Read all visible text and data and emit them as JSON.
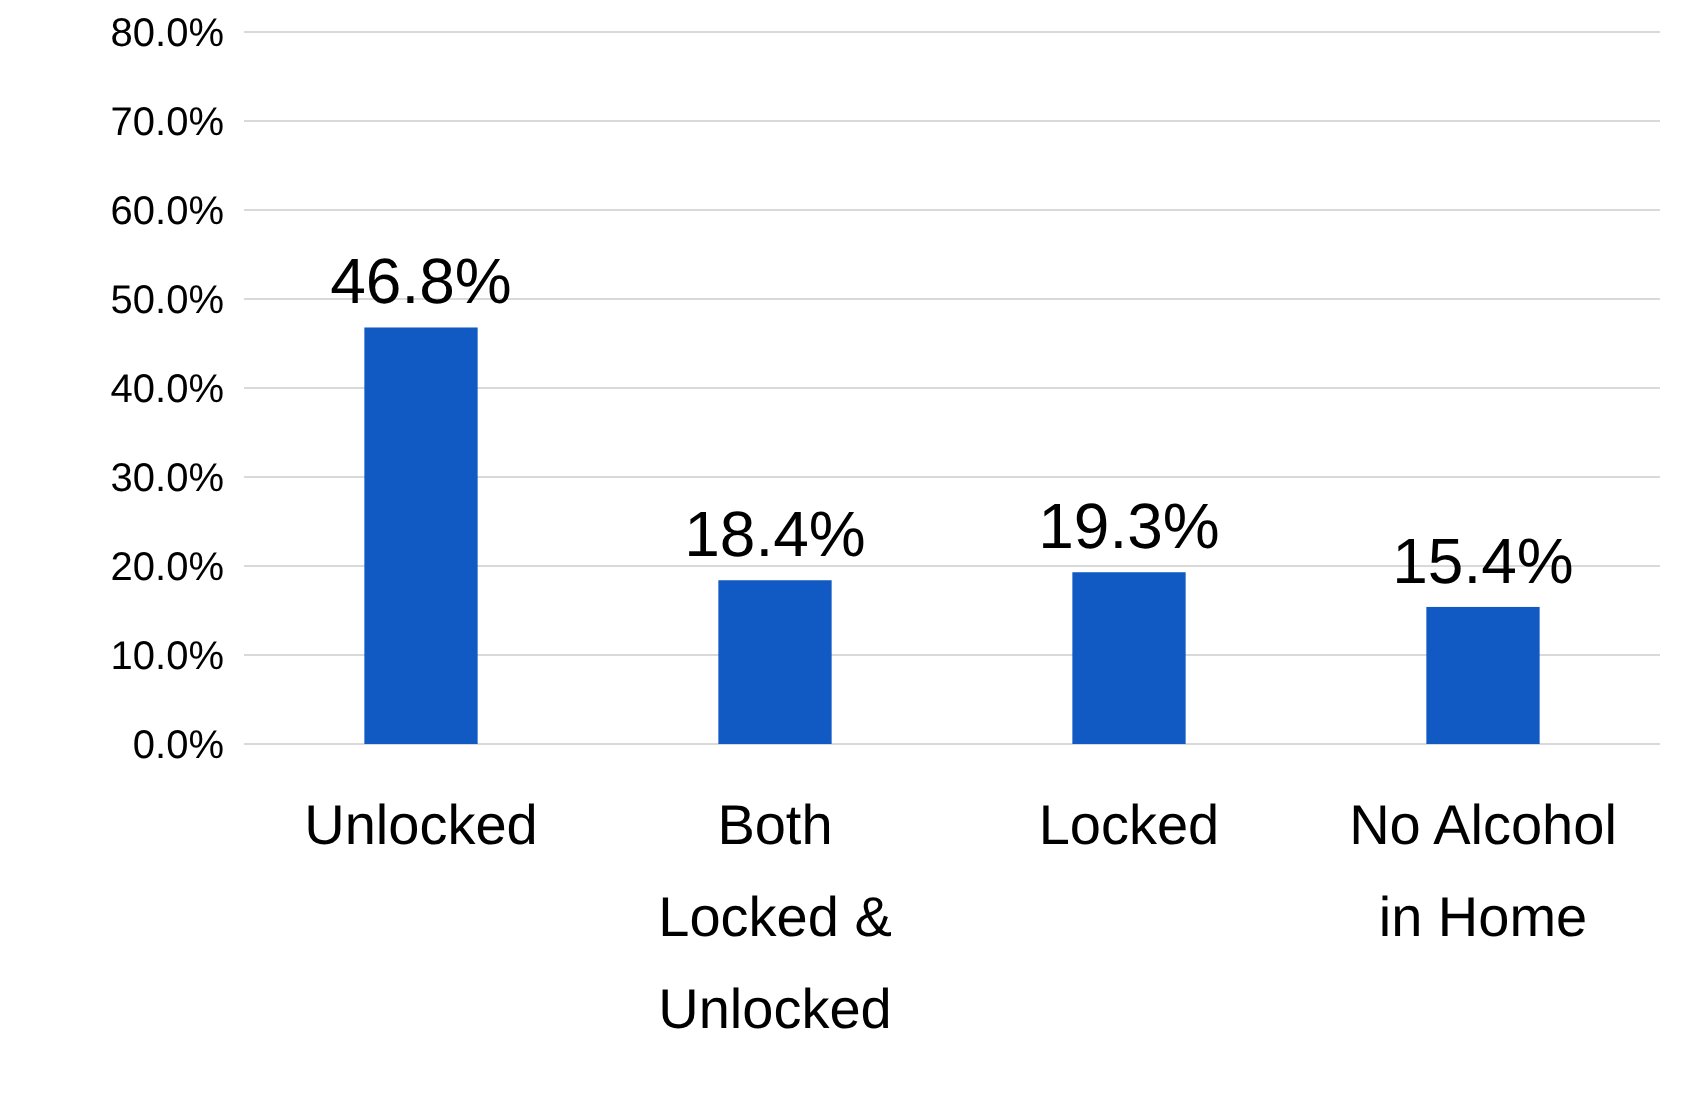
{
  "chart_data": {
    "type": "bar",
    "categories": [
      "Unlocked",
      "Both Locked & Unlocked",
      "Locked",
      "No Alcohol in Home"
    ],
    "values": [
      46.8,
      18.4,
      19.3,
      15.4
    ],
    "color": "#115ac4",
    "ylim": [
      0,
      80
    ],
    "yticks": [
      {
        "value": 0,
        "label": "0.0%"
      },
      {
        "value": 10,
        "label": "10.0%"
      },
      {
        "value": 20,
        "label": "20.0%"
      },
      {
        "value": 30,
        "label": "30.0%"
      },
      {
        "value": 40,
        "label": "40.0%"
      },
      {
        "value": 50,
        "label": "50.0%"
      },
      {
        "value": 60,
        "label": "60.0%"
      },
      {
        "value": 70,
        "label": "70.0%"
      },
      {
        "value": 80,
        "label": "80.0%"
      }
    ],
    "value_labels": [
      "46.8%",
      "18.4%",
      "19.3%",
      "15.4%"
    ],
    "grid": "y"
  }
}
